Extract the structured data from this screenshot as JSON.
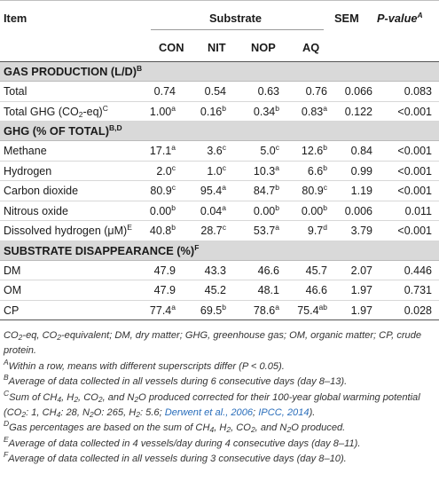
{
  "header": {
    "item": "Item",
    "substrate": "Substrate",
    "sem": "SEM",
    "pvalue": "P-value",
    "pvalue_sup": "A",
    "columns": [
      "CON",
      "NIT",
      "NOP",
      "AQ"
    ]
  },
  "sections": [
    {
      "title": "GAS PRODUCTION (L/D)",
      "title_sup": "B",
      "rows": [
        {
          "item": "Total",
          "cells": [
            {
              "v": "0.74",
              "s": ""
            },
            {
              "v": "0.54",
              "s": ""
            },
            {
              "v": "0.63",
              "s": ""
            },
            {
              "v": "0.76",
              "s": ""
            }
          ],
          "sem": "0.066",
          "p": "0.083"
        },
        {
          "item_parts": [
            "Total GHG (CO",
            "2",
            "-eq)",
            "C"
          ],
          "cells": [
            {
              "v": "1.00",
              "s": "a"
            },
            {
              "v": "0.16",
              "s": "b"
            },
            {
              "v": "0.34",
              "s": "b"
            },
            {
              "v": "0.83",
              "s": "a"
            }
          ],
          "sem": "0.122",
          "p": "<0.001"
        }
      ]
    },
    {
      "title": "GHG (% OF TOTAL)",
      "title_sup": "B,D",
      "rows": [
        {
          "item": "Methane",
          "cells": [
            {
              "v": "17.1",
              "s": "a"
            },
            {
              "v": "3.6",
              "s": "c"
            },
            {
              "v": "5.0",
              "s": "c"
            },
            {
              "v": "12.6",
              "s": "b"
            }
          ],
          "sem": "0.84",
          "p": "<0.001"
        },
        {
          "item": "Hydrogen",
          "cells": [
            {
              "v": "2.0",
              "s": "c"
            },
            {
              "v": "1.0",
              "s": "c"
            },
            {
              "v": "10.3",
              "s": "a"
            },
            {
              "v": "6.6",
              "s": "b"
            }
          ],
          "sem": "0.99",
          "p": "<0.001"
        },
        {
          "item": "Carbon dioxide",
          "cells": [
            {
              "v": "80.9",
              "s": "c"
            },
            {
              "v": "95.4",
              "s": "a"
            },
            {
              "v": "84.7",
              "s": "b"
            },
            {
              "v": "80.9",
              "s": "c"
            }
          ],
          "sem": "1.19",
          "p": "<0.001"
        },
        {
          "item": "Nitrous oxide",
          "cells": [
            {
              "v": "0.00",
              "s": "b"
            },
            {
              "v": "0.04",
              "s": "a"
            },
            {
              "v": "0.00",
              "s": "b"
            },
            {
              "v": "0.00",
              "s": "b"
            }
          ],
          "sem": "0.006",
          "p": "0.011"
        },
        {
          "item": "Dissolved hydrogen (μM)",
          "item_sup": "E",
          "cells": [
            {
              "v": "40.8",
              "s": "b"
            },
            {
              "v": "28.7",
              "s": "c"
            },
            {
              "v": "53.7",
              "s": "a"
            },
            {
              "v": "9.7",
              "s": "d"
            }
          ],
          "sem": "3.79",
          "p": "<0.001"
        }
      ]
    },
    {
      "title": "SUBSTRATE DISAPPEARANCE (%)",
      "title_sup": "F",
      "rows": [
        {
          "item": "DM",
          "cells": [
            {
              "v": "47.9",
              "s": ""
            },
            {
              "v": "43.3",
              "s": ""
            },
            {
              "v": "46.6",
              "s": ""
            },
            {
              "v": "45.7",
              "s": ""
            }
          ],
          "sem": "2.07",
          "p": "0.446"
        },
        {
          "item": "OM",
          "cells": [
            {
              "v": "47.9",
              "s": ""
            },
            {
              "v": "45.2",
              "s": ""
            },
            {
              "v": "48.1",
              "s": ""
            },
            {
              "v": "46.6",
              "s": ""
            }
          ],
          "sem": "1.97",
          "p": "0.731"
        },
        {
          "item": "CP",
          "cells": [
            {
              "v": "77.4",
              "s": "a"
            },
            {
              "v": "69.5",
              "s": "b"
            },
            {
              "v": "78.6",
              "s": "a"
            },
            {
              "v": "75.4",
              "s": "ab"
            }
          ],
          "sem": "1.97",
          "p": "0.028"
        }
      ]
    }
  ],
  "notes": {
    "abbreviations": "CO2-eq, CO2-equivalent; DM, dry matter; GHG, greenhouse gas; OM, organic matter; CP, crude protein.",
    "A": {
      "mark": "A",
      "text": "Within a row, means with different superscripts differ (P < 0.05)."
    },
    "B": {
      "mark": "B",
      "text": "Average of data collected in all vessels during 6 consecutive days (day 8–13)."
    },
    "C": {
      "mark": "C",
      "text": "Sum of CH4, H2, CO2, and N2O produced corrected for their 100-year global warming potential (CO2: 1, CH4: 28, N2O: 265, H2: 5.6; Derwent et al., 2006; IPCC, 2014).",
      "cite1": "Derwent et al., 2006",
      "cite2": "IPCC, 2014"
    },
    "D": {
      "mark": "D",
      "text": "Gas percentages are based on the sum of CH4, H2, CO2, and N2O produced."
    },
    "E": {
      "mark": "E",
      "text": "Average of data collected in 4 vessels/day during 4 consecutive days (day 8–11)."
    },
    "F": {
      "mark": "F",
      "text": "Average of data collected in all vessels during 3 consecutive days (day 8–10)."
    }
  }
}
